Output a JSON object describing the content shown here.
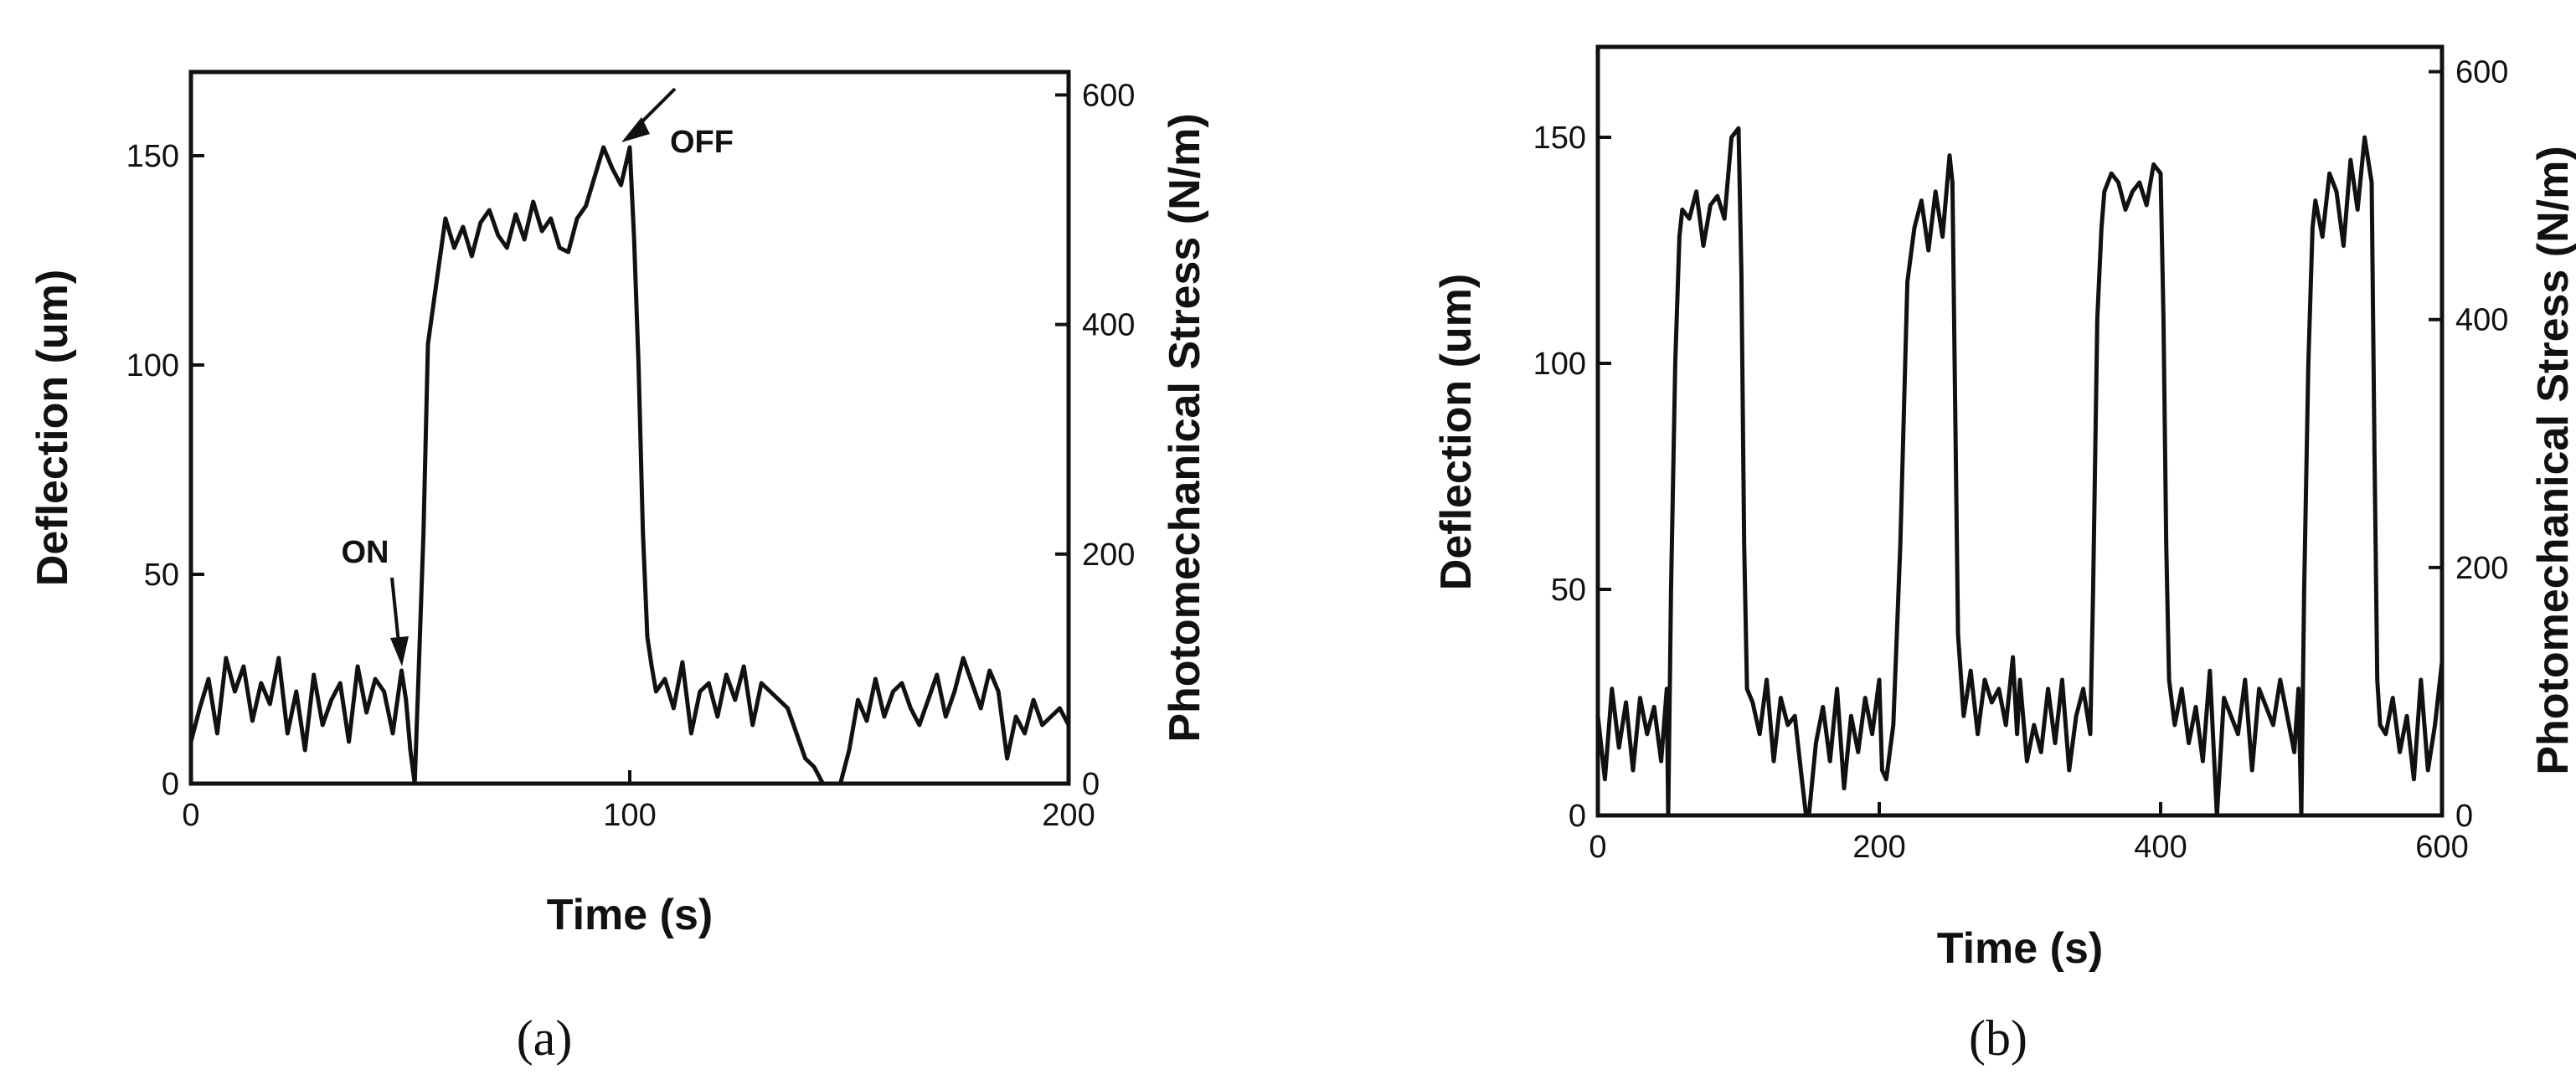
{
  "chart_data": [
    {
      "type": "line",
      "caption": "(a)",
      "xlabel": "Time (s)",
      "ylabel": "Deflection (um)",
      "y2label": "Photomechanical Stress (N/m)",
      "xlim": [
        0,
        200
      ],
      "ylim": [
        0,
        170
      ],
      "y2lim": [
        0,
        620
      ],
      "xticks": [
        "0",
        "100",
        "200"
      ],
      "yticks": [
        "0",
        "50",
        "100",
        "150"
      ],
      "y2ticks": [
        "0",
        "200",
        "400",
        "600"
      ],
      "annotations": [
        {
          "text": "ON",
          "x": 50,
          "y": 28
        },
        {
          "text": "OFF",
          "x": 100,
          "y": 152
        }
      ],
      "series": [
        {
          "x": [
            0,
            2,
            4,
            6,
            8,
            10,
            12,
            14,
            16,
            18,
            20,
            22,
            24,
            26,
            28,
            30,
            32,
            34,
            36,
            38,
            40,
            42,
            44,
            46,
            48,
            49,
            50,
            51,
            52,
            53,
            54,
            56,
            58,
            60,
            62,
            64,
            66,
            68,
            70,
            72,
            74,
            76,
            78,
            80,
            82,
            84,
            86,
            88,
            90,
            92,
            94,
            96,
            98,
            100,
            101,
            102,
            103,
            104,
            105,
            106,
            108,
            110,
            112,
            114,
            116,
            118,
            120,
            122,
            124,
            126,
            128,
            130,
            132,
            134,
            136,
            138,
            140,
            142,
            144,
            146,
            148,
            150,
            152,
            154,
            156,
            158,
            160,
            162,
            164,
            166,
            168,
            170,
            172,
            174,
            176,
            178,
            180,
            182,
            184,
            186,
            188,
            190,
            192,
            194,
            196,
            198,
            200
          ],
          "values": [
            10,
            18,
            25,
            12,
            30,
            22,
            28,
            15,
            24,
            19,
            30,
            12,
            22,
            8,
            26,
            14,
            20,
            24,
            10,
            28,
            17,
            25,
            22,
            12,
            27,
            20,
            8,
            0,
            30,
            60,
            105,
            120,
            135,
            128,
            133,
            126,
            134,
            137,
            131,
            128,
            136,
            130,
            139,
            132,
            135,
            128,
            127,
            135,
            138,
            145,
            152,
            147,
            143,
            152,
            130,
            100,
            60,
            35,
            28,
            22,
            25,
            18,
            29,
            12,
            22,
            24,
            16,
            26,
            20,
            28,
            14,
            24,
            22,
            20,
            18,
            12,
            6,
            4,
            0,
            0,
            0,
            8,
            20,
            15,
            25,
            16,
            22,
            24,
            18,
            14,
            20,
            26,
            16,
            22,
            30,
            24,
            18,
            27,
            22,
            6,
            16,
            12,
            20,
            14,
            16,
            18,
            14
          ]
        }
      ]
    },
    {
      "type": "line",
      "caption": "(b)",
      "xlabel": "Time (s)",
      "ylabel": "Deflection (um)",
      "y2label": "Photomechanical Stress (N/m)",
      "xlim": [
        0,
        600
      ],
      "ylim": [
        0,
        170
      ],
      "y2lim": [
        0,
        620
      ],
      "xticks": [
        "0",
        "200",
        "400",
        "600"
      ],
      "yticks": [
        "0",
        "50",
        "100",
        "150"
      ],
      "y2ticks": [
        "0",
        "200",
        "400",
        "600"
      ],
      "series": [
        {
          "x": [
            0,
            5,
            10,
            15,
            20,
            25,
            30,
            35,
            40,
            45,
            49,
            50,
            52,
            55,
            58,
            60,
            65,
            70,
            75,
            80,
            85,
            90,
            95,
            100,
            102,
            104,
            106,
            110,
            115,
            120,
            125,
            130,
            135,
            140,
            145,
            148,
            150,
            155,
            160,
            165,
            170,
            175,
            180,
            185,
            190,
            195,
            200,
            202,
            205,
            210,
            215,
            220,
            225,
            230,
            235,
            240,
            245,
            250,
            252,
            254,
            256,
            260,
            265,
            270,
            275,
            280,
            285,
            290,
            295,
            298,
            300,
            305,
            310,
            315,
            320,
            325,
            330,
            335,
            340,
            345,
            350,
            352,
            355,
            358,
            360,
            365,
            370,
            375,
            380,
            385,
            390,
            395,
            400,
            402,
            404,
            406,
            410,
            415,
            420,
            425,
            430,
            435,
            440,
            445,
            450,
            455,
            460,
            465,
            470,
            475,
            480,
            485,
            490,
            495,
            498,
            500,
            502,
            505,
            508,
            510,
            515,
            520,
            525,
            530,
            535,
            540,
            545,
            550,
            552,
            554,
            556,
            560,
            565,
            570,
            575,
            580,
            585,
            590,
            595,
            600
          ],
          "values": [
            22,
            8,
            28,
            15,
            25,
            10,
            26,
            18,
            24,
            12,
            28,
            0,
            50,
            100,
            128,
            134,
            132,
            138,
            126,
            135,
            137,
            132,
            150,
            152,
            120,
            60,
            28,
            25,
            18,
            30,
            12,
            26,
            20,
            22,
            8,
            0,
            0,
            16,
            24,
            12,
            28,
            6,
            22,
            14,
            26,
            18,
            30,
            10,
            8,
            20,
            60,
            118,
            130,
            136,
            125,
            138,
            128,
            146,
            140,
            90,
            40,
            22,
            32,
            18,
            30,
            25,
            28,
            20,
            35,
            18,
            30,
            12,
            20,
            14,
            28,
            16,
            30,
            10,
            22,
            28,
            18,
            50,
            110,
            130,
            138,
            142,
            140,
            134,
            138,
            140,
            135,
            144,
            142,
            110,
            60,
            30,
            20,
            28,
            16,
            24,
            12,
            32,
            0,
            26,
            22,
            18,
            30,
            10,
            28,
            24,
            20,
            30,
            22,
            14,
            28,
            0,
            50,
            100,
            130,
            136,
            128,
            142,
            138,
            126,
            145,
            134,
            150,
            140,
            80,
            30,
            20,
            18,
            26,
            14,
            22,
            8,
            30,
            10,
            20,
            34
          ]
        }
      ]
    }
  ]
}
